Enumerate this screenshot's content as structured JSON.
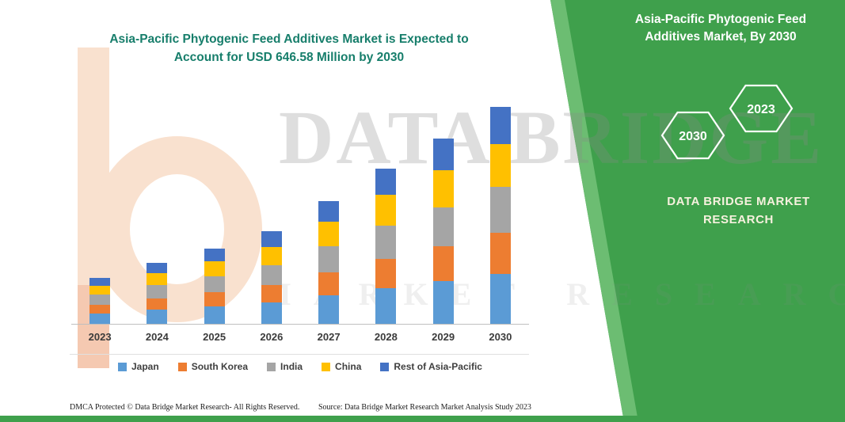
{
  "header": {
    "title_line1": "Asia-Pacific Phytogenic Feed Additives Market is Expected to",
    "title_line2": "Account for USD 646.58 Million by 2030"
  },
  "side_panel": {
    "title_line1": "Asia-Pacific Phytogenic Feed",
    "title_line2": "Additives Market, By 2030",
    "hexagon_left_label": "2030",
    "hexagon_right_label": "2023",
    "brand_line1": "DATA BRIDGE MARKET",
    "brand_line2": "RESEARCH",
    "green_color": "#3fa04c"
  },
  "watermark": {
    "line1": "DATA BRIDGE",
    "line2": "MARKET RESEARCH"
  },
  "footer": {
    "left": "DMCA Protected © Data Bridge Market Research-  All Rights Reserved.",
    "right": "Source: Data Bridge Market Research  Market Analysis Study 2023"
  },
  "chart_data": {
    "type": "bar",
    "stacked": true,
    "title": "Asia-Pacific Phytogenic Feed Additives Market is Expected to Account for USD 646.58 Million by 2030",
    "units": "USD Million",
    "categories": [
      "2023",
      "2024",
      "2025",
      "2026",
      "2027",
      "2028",
      "2029",
      "2030"
    ],
    "series": [
      {
        "name": "Japan",
        "color": "#5b9bd5",
        "values": [
          31.5,
          41.9,
          51.5,
          63.5,
          84.2,
          106.5,
          127.0,
          148.7
        ]
      },
      {
        "name": "South Korea",
        "color": "#ed7d31",
        "values": [
          26.0,
          34.6,
          42.6,
          52.4,
          69.5,
          88.0,
          104.9,
          122.8
        ]
      },
      {
        "name": "India",
        "color": "#a5a5a5",
        "values": [
          28.8,
          38.2,
          47.0,
          58.0,
          76.9,
          97.2,
          115.9,
          135.8
        ]
      },
      {
        "name": "China",
        "color": "#ffc000",
        "values": [
          27.4,
          36.4,
          44.8,
          55.2,
          73.2,
          92.6,
          110.4,
          129.3
        ]
      },
      {
        "name": "Rest of Asia-Pacific",
        "color": "#4472c4",
        "values": [
          23.3,
          30.9,
          38.1,
          46.9,
          62.2,
          78.7,
          93.8,
          110.0
        ]
      }
    ],
    "totals_note": "2030 stacked total = 646.58",
    "ylim": [
      0,
      650
    ],
    "grid": false,
    "legend_position": "bottom"
  }
}
